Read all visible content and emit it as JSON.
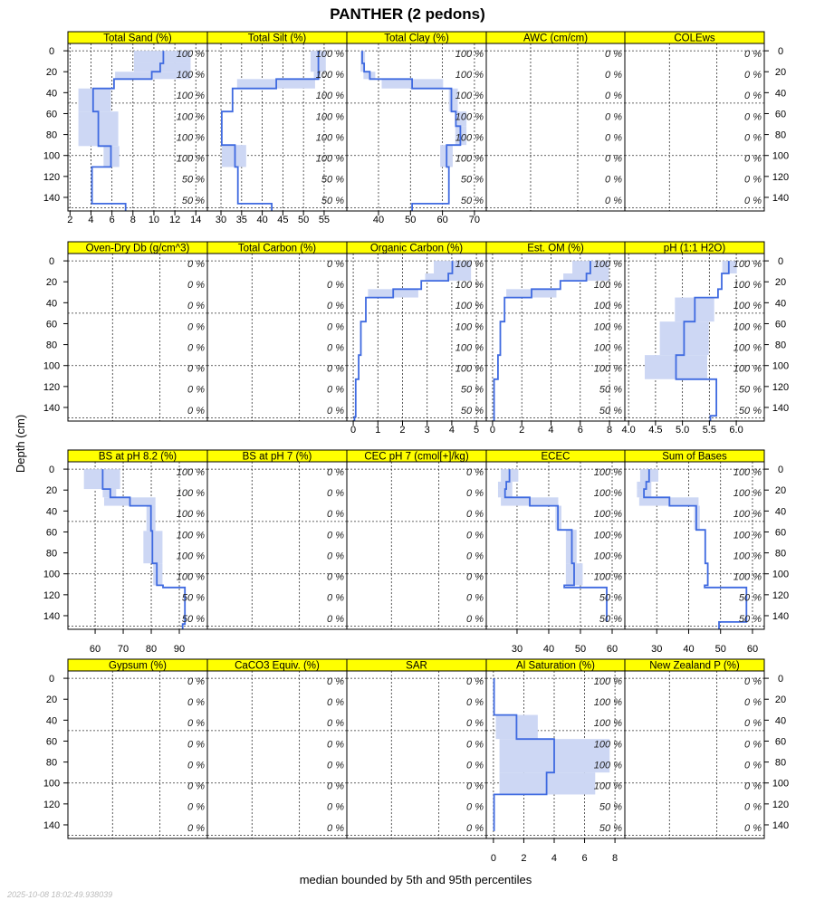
{
  "title": "PANTHER (2 pedons)",
  "ylabel": "Depth (cm)",
  "xlabel": "median bounded by 5th and 95th percentiles",
  "timestamp": "2025-10-08 18:02:49.938039",
  "colors": {
    "median": "#3f6ae0",
    "band": "#cdd7f4",
    "strip": "#ffff00"
  },
  "chart_data": {
    "type": "line",
    "depth_ticks": [
      0,
      20,
      40,
      60,
      80,
      100,
      120,
      140
    ],
    "depth_range": [
      -7,
      153
    ],
    "depth_gridlines": [
      0,
      50,
      100,
      150
    ],
    "pct_depths": [
      2.5,
      22.5,
      42.5,
      62.5,
      82.5,
      102.5,
      122.5,
      142.5
    ],
    "panels": [
      {
        "label": "Total Sand (%)",
        "xlim": [
          1.8,
          15.1
        ],
        "ticks": [
          2,
          4,
          6,
          8,
          10,
          12,
          14
        ],
        "tick_labels": [
          "2",
          "4",
          "6",
          "8",
          "10",
          "12",
          "14"
        ],
        "pct": [
          "100 %",
          "100 %",
          "100 %",
          "100 %",
          "100 %",
          "100 %",
          "50 %",
          "50 %"
        ],
        "steps": [
          [
            0,
            12,
            10.9,
            8.1,
            13.5
          ],
          [
            12,
            20,
            10.6,
            8.1,
            13.5
          ],
          [
            20,
            27,
            9.8,
            6.3,
            13.5
          ],
          [
            27,
            36,
            6.2,
            null,
            null
          ],
          [
            36,
            58,
            4.2,
            2.8,
            5.9
          ],
          [
            58,
            91,
            4.7,
            2.8,
            6.6
          ],
          [
            91,
            111,
            5.9,
            5.2,
            6.7
          ],
          [
            111,
            146,
            4.1,
            null,
            null
          ],
          [
            146,
            153,
            7.3,
            null,
            null
          ]
        ]
      },
      {
        "label": "Total Silt (%)",
        "xlim": [
          26.7,
          60.5
        ],
        "ticks": [
          30,
          35,
          40,
          45,
          50,
          55
        ],
        "tick_labels": [
          "30",
          "35",
          "40",
          "45",
          "50",
          "55"
        ],
        "pct": [
          "100 %",
          "100 %",
          "100 %",
          "100 %",
          "100 %",
          "100 %",
          "50 %",
          "50 %"
        ],
        "steps": [
          [
            0,
            20,
            53.6,
            51.7,
            55.4
          ],
          [
            20,
            27,
            53.6,
            52.5,
            54.2
          ],
          [
            27,
            36,
            43.4,
            33.9,
            52.8
          ],
          [
            36,
            58,
            32.8,
            null,
            null
          ],
          [
            58,
            90,
            30.2,
            null,
            null
          ],
          [
            90,
            111,
            33.4,
            30.2,
            36.1
          ],
          [
            111,
            146,
            34.1,
            null,
            null
          ],
          [
            146,
            153,
            42.3,
            null,
            null
          ]
        ]
      },
      {
        "label": "Total Clay (%)",
        "xlim": [
          30.1,
          73.7
        ],
        "ticks": [
          40,
          50,
          60,
          70
        ],
        "tick_labels": [
          "40",
          "50",
          "60",
          "70"
        ],
        "pct": [
          "100 %",
          "100 %",
          "100 %",
          "100 %",
          "100 %",
          "100 %",
          "50 %",
          "50 %"
        ],
        "steps": [
          [
            0,
            12,
            34.9,
            34.4,
            35.8
          ],
          [
            12,
            20,
            35.5,
            34.4,
            35.8
          ],
          [
            20,
            27,
            37.3,
            35.3,
            39.0
          ],
          [
            27,
            36,
            50.5,
            41.0,
            60.2
          ],
          [
            36,
            58,
            62.8,
            62.0,
            64.8
          ],
          [
            58,
            72,
            64.2,
            64.0,
            67.5
          ],
          [
            72,
            90,
            65.6,
            64.0,
            67.5
          ],
          [
            90,
            111,
            61.3,
            59.3,
            63.2
          ],
          [
            111,
            146,
            62.0,
            null,
            null
          ],
          [
            146,
            153,
            50.5,
            null,
            null
          ]
        ]
      },
      {
        "label": "AWC (cm/cm)",
        "pct": [
          "0 %",
          "0 %",
          "0 %",
          "0 %",
          "0 %",
          "0 %",
          "0 %",
          "0 %"
        ]
      },
      {
        "label": "COLEws",
        "pct": [
          "0 %",
          "0 %",
          "0 %",
          "0 %",
          "0 %",
          "0 %",
          "0 %",
          "0 %"
        ]
      },
      {
        "label": "Oven-Dry Db (g/cm^3)",
        "pct": [
          "0 %",
          "0 %",
          "0 %",
          "0 %",
          "0 %",
          "0 %",
          "0 %",
          "0 %"
        ]
      },
      {
        "label": "Total Carbon (%)",
        "pct": [
          "0 %",
          "0 %",
          "0 %",
          "0 %",
          "0 %",
          "0 %",
          "0 %",
          "0 %"
        ]
      },
      {
        "label": "Organic Carbon (%)",
        "xlim": [
          -0.26,
          5.4
        ],
        "ticks": [
          0,
          1,
          2,
          3,
          4,
          5
        ],
        "tick_labels": [
          "0",
          "1",
          "2",
          "3",
          "4",
          "5"
        ],
        "pct": [
          "100 %",
          "100 %",
          "100 %",
          "100 %",
          "100 %",
          "100 %",
          "50 %",
          "50 %"
        ],
        "steps": [
          [
            0,
            12,
            4.02,
            3.27,
            4.78
          ],
          [
            12,
            19,
            3.86,
            2.92,
            4.78
          ],
          [
            19,
            27,
            2.76,
            null,
            null
          ],
          [
            27,
            35,
            1.62,
            0.6,
            2.64
          ],
          [
            35,
            58,
            0.51,
            null,
            null
          ],
          [
            58,
            90,
            0.31,
            null,
            null
          ],
          [
            90,
            113,
            0.22,
            null,
            null
          ],
          [
            113,
            149,
            0.1,
            null,
            null
          ],
          [
            149,
            153,
            0.05,
            null,
            null
          ]
        ]
      },
      {
        "label": "Est. OM (%)",
        "xlim": [
          -0.43,
          9.05
        ],
        "ticks": [
          0,
          2,
          4,
          6,
          8
        ],
        "tick_labels": [
          "0",
          "2",
          "4",
          "6",
          "8"
        ],
        "pct": [
          "100 %",
          "100 %",
          "100 %",
          "100 %",
          "100 %",
          "100 %",
          "50 %",
          "50 %"
        ],
        "steps": [
          [
            0,
            12,
            6.69,
            5.46,
            7.96
          ],
          [
            12,
            19,
            6.42,
            4.84,
            7.96
          ],
          [
            19,
            27,
            4.64,
            null,
            null
          ],
          [
            27,
            35,
            2.67,
            0.94,
            4.37
          ],
          [
            35,
            58,
            0.82,
            null,
            null
          ],
          [
            58,
            90,
            0.53,
            null,
            null
          ],
          [
            90,
            113,
            0.37,
            null,
            null
          ],
          [
            113,
            153,
            0.1,
            null,
            null
          ]
        ]
      },
      {
        "label": "pH (1:1 H2O)",
        "xlim": [
          3.93,
          6.52
        ],
        "ticks": [
          4.0,
          4.5,
          5.0,
          5.5,
          6.0
        ],
        "tick_labels": [
          "4.0",
          "4.5",
          "5.0",
          "5.5",
          "6.0"
        ],
        "pct": [
          "100 %",
          "100 %",
          "100 %",
          "100 %",
          "100 %",
          "100 %",
          "50 %",
          "50 %"
        ],
        "steps": [
          [
            0,
            12,
            5.86,
            5.74,
            6.01
          ],
          [
            12,
            27,
            5.73,
            null,
            null
          ],
          [
            27,
            35,
            5.66,
            null,
            null
          ],
          [
            35,
            58,
            5.23,
            4.86,
            5.59
          ],
          [
            58,
            90,
            5.03,
            4.58,
            5.49
          ],
          [
            90,
            113,
            4.88,
            4.3,
            5.46
          ],
          [
            113,
            148,
            5.63,
            null,
            null
          ],
          [
            148,
            153,
            5.52,
            null,
            null
          ]
        ]
      },
      {
        "label": "BS at pH 8.2 (%)",
        "xlim": [
          50.3,
          100
        ],
        "ticks": [
          60,
          70,
          80,
          90
        ],
        "tick_labels": [
          "60",
          "70",
          "80",
          "90"
        ],
        "pct": [
          "100 %",
          "100 %",
          "100 %",
          "100 %",
          "100 %",
          "100 %",
          "50 %",
          "50 %"
        ],
        "steps": [
          [
            0,
            19,
            62.7,
            56.0,
            68.9
          ],
          [
            19,
            27,
            65.4,
            62.7,
            67.5
          ],
          [
            27,
            35,
            72.4,
            63.2,
            81.5
          ],
          [
            35,
            59,
            79.9,
            78.3,
            81.5
          ],
          [
            59,
            90,
            80.4,
            77.2,
            84.0
          ],
          [
            90,
            111,
            82.0,
            80.7,
            84.0
          ],
          [
            111,
            113,
            84.2,
            null,
            null
          ],
          [
            113,
            148,
            92.0,
            null,
            null
          ],
          [
            148,
            153,
            91.2,
            null,
            null
          ]
        ]
      },
      {
        "label": "BS at pH 7 (%)",
        "pct": [
          "0 %",
          "0 %",
          "0 %",
          "0 %",
          "0 %",
          "0 %",
          "0 %",
          "0 %"
        ]
      },
      {
        "label": "CEC pH 7 (cmol[+]/kg)",
        "pct": [
          "0 %",
          "0 %",
          "0 %",
          "0 %",
          "0 %",
          "0 %",
          "0 %",
          "0 %"
        ]
      },
      {
        "label": "ECEC",
        "xlim": [
          20.3,
          64
        ],
        "ticks": [
          30,
          40,
          50,
          60
        ],
        "tick_labels": [
          "30",
          "40",
          "50",
          "60"
        ],
        "pct": [
          "100 %",
          "100 %",
          "100 %",
          "100 %",
          "100 %",
          "100 %",
          "50 %",
          "50 %"
        ],
        "steps": [
          [
            0,
            12,
            27.6,
            24.9,
            30.4
          ],
          [
            12,
            19,
            26.6,
            24.0,
            28.5
          ],
          [
            19,
            27,
            26.2,
            24.0,
            28.5
          ],
          [
            27,
            35,
            34.0,
            24.9,
            43.0
          ],
          [
            35,
            58,
            42.9,
            42.1,
            44.0
          ],
          [
            58,
            90,
            47.3,
            45.4,
            48.8
          ],
          [
            90,
            111,
            48.0,
            45.4,
            50.7
          ],
          [
            111,
            113,
            44.9,
            null,
            null
          ],
          [
            113,
            146,
            58.3,
            null,
            null
          ]
        ]
      },
      {
        "label": "Sum of Bases",
        "xlim": [
          20,
          63.7
        ],
        "ticks": [
          30,
          40,
          50,
          60
        ],
        "tick_labels": [
          "30",
          "40",
          "50",
          "60"
        ],
        "pct": [
          "100 %",
          "100 %",
          "100 %",
          "100 %",
          "100 %",
          "100 %",
          "50 %",
          "50 %"
        ],
        "steps": [
          [
            0,
            12,
            27.6,
            24.8,
            30.5
          ],
          [
            12,
            19,
            26.7,
            23.8,
            28.3
          ],
          [
            19,
            27,
            26.0,
            23.8,
            28.3
          ],
          [
            27,
            35,
            34.0,
            24.5,
            43.1
          ],
          [
            35,
            58,
            42.4,
            41.7,
            43.5
          ],
          [
            58,
            90,
            45.2,
            null,
            null
          ],
          [
            90,
            111,
            46.0,
            null,
            null
          ],
          [
            111,
            113,
            45.0,
            null,
            null
          ],
          [
            113,
            146,
            58.1,
            null,
            null
          ],
          [
            146,
            153,
            49.5,
            null,
            null
          ]
        ]
      },
      {
        "label": "Gypsum (%)",
        "pct": [
          "0 %",
          "0 %",
          "0 %",
          "0 %",
          "0 %",
          "0 %",
          "0 %",
          "0 %"
        ]
      },
      {
        "label": "CaCO3 Equiv. (%)",
        "pct": [
          "0 %",
          "0 %",
          "0 %",
          "0 %",
          "0 %",
          "0 %",
          "0 %",
          "0 %"
        ]
      },
      {
        "label": "SAR",
        "pct": [
          "0 %",
          "0 %",
          "0 %",
          "0 %",
          "0 %",
          "0 %",
          "0 %",
          "0 %"
        ]
      },
      {
        "label": "Al Saturation (%)",
        "xlim": [
          -0.47,
          8.65
        ],
        "ticks": [
          0,
          2,
          4,
          6,
          8
        ],
        "tick_labels": [
          "0",
          "2",
          "4",
          "6",
          "8"
        ],
        "pct": [
          "100 %",
          "100 %",
          "100 %",
          "100 %",
          "100 %",
          "100 %",
          "50 %",
          "50 %"
        ],
        "steps": [
          [
            0,
            35,
            0.04,
            null,
            null
          ],
          [
            35,
            58,
            1.52,
            0.16,
            2.92
          ],
          [
            58,
            90,
            4.0,
            0.4,
            7.65
          ],
          [
            90,
            111,
            3.5,
            0.4,
            6.7
          ],
          [
            111,
            146,
            0.04,
            null,
            null
          ]
        ]
      },
      {
        "label": "New Zealand P (%)",
        "pct": [
          "0 %",
          "0 %",
          "0 %",
          "0 %",
          "0 %",
          "0 %",
          "0 %",
          "0 %"
        ]
      }
    ]
  }
}
